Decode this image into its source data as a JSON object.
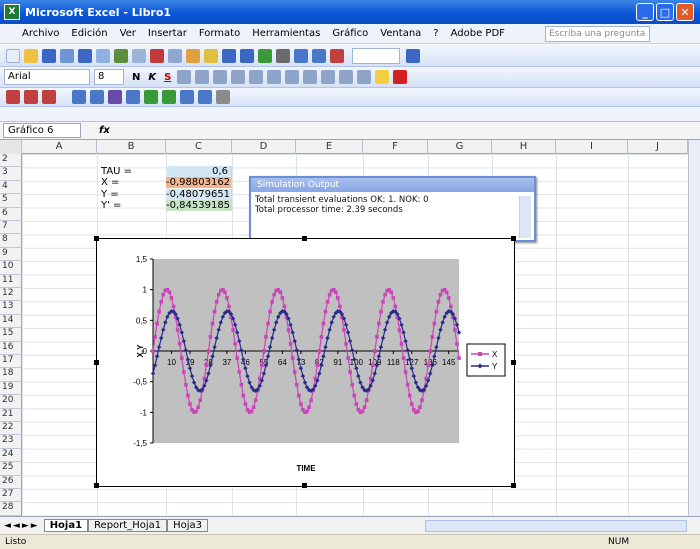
{
  "window": {
    "title": "Microsoft Excel - Libro1"
  },
  "menu": {
    "items": [
      "Archivo",
      "Edición",
      "Ver",
      "Insertar",
      "Formato",
      "Herramientas",
      "Gráfico",
      "Ventana",
      "?",
      "Adobe PDF"
    ],
    "ask_placeholder": "Escriba una pregunta"
  },
  "format_bar": {
    "font": "Arial",
    "font_size": "8",
    "bold": "N",
    "italic": "K",
    "underline": "S"
  },
  "formula_bar": {
    "name_box": "Gráfico 6",
    "fx": "fx"
  },
  "columns": [
    "A",
    "B",
    "C",
    "D",
    "E",
    "F",
    "G",
    "H",
    "I",
    "J"
  ],
  "rows": [
    "2",
    "3",
    "4",
    "5",
    "6",
    "7",
    "8",
    "9",
    "10",
    "11",
    "12",
    "13",
    "14",
    "15",
    "16",
    "17",
    "18",
    "19",
    "20",
    "21",
    "22",
    "23",
    "24",
    "25",
    "26",
    "27",
    "28"
  ],
  "cells": {
    "tau_label": "TAU =",
    "tau_value": "0,6",
    "x_label": "X =",
    "x_value": "-0,98803162",
    "y_label": "Y =",
    "y_value": "-0,48079651",
    "yp_label": "Y' =",
    "yp_value": "-0,84539185"
  },
  "colors": {
    "tau": "#d3e6f3",
    "x": "#f3b58c",
    "y": "#d3e6f3",
    "yp": "#c7e2c5",
    "accent": "#0a56d8"
  },
  "sim_window": {
    "title": "Simulation Output",
    "line1": "Total transient evaluations OK: 1. NOK: 0",
    "line2": "Total processor time: 2.39 seconds"
  },
  "sheet_tabs": [
    "Hoja1",
    "Report_Hoja1",
    "Hoja3"
  ],
  "status": {
    "left": "Listo",
    "num": "NUM"
  },
  "chart_data": {
    "type": "line",
    "xlabel": "TIME",
    "ylabel": "X,Y",
    "ylim": [
      -1.5,
      1.5
    ],
    "yticks": [
      "1,5",
      "1",
      "0,5",
      "0",
      "-0,5",
      "-1",
      "-1,5"
    ],
    "xticks": [
      "10",
      "19",
      "28",
      "37",
      "46",
      "55",
      "64",
      "73",
      "82",
      "91",
      "100",
      "109",
      "118",
      "127",
      "136",
      "145"
    ],
    "n_points": 150,
    "series": [
      {
        "name": "X",
        "color": "#cc44bb",
        "amplitude": 1.0,
        "period": 27,
        "phase": 0
      },
      {
        "name": "Y",
        "color": "#2a2a8a",
        "amplitude": 0.65,
        "period": 27,
        "phase": -0.6
      }
    ],
    "grid": false,
    "legend": "right"
  }
}
